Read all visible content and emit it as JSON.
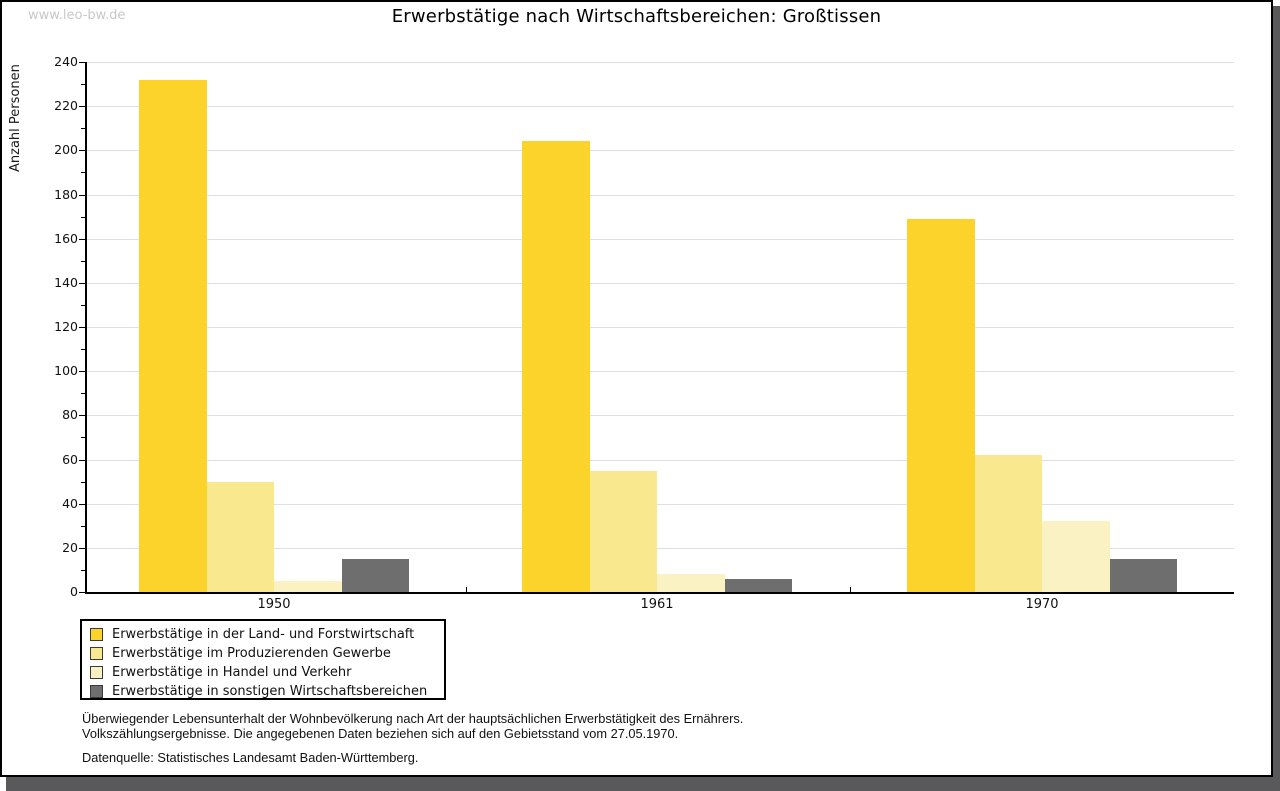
{
  "watermark": "www.leo-bw.de",
  "title": "Erwerbstätige nach Wirtschaftsbereichen: Großtissen",
  "chart_data": {
    "type": "bar",
    "title": "Erwerbstätige nach Wirtschaftsbereichen: Großtissen",
    "xlabel": "",
    "ylabel": "Anzahl Personen",
    "categories": [
      "1950",
      "1961",
      "1970"
    ],
    "series": [
      {
        "name": "Erwerbstätige in der Land- und Forstwirtschaft",
        "color": "#FBD32B",
        "values": [
          232,
          204,
          169
        ]
      },
      {
        "name": "Erwerbstätige im Produzierenden Gewerbe",
        "color": "#FAE88E",
        "values": [
          50,
          55,
          62
        ]
      },
      {
        "name": "Erwerbstätige in Handel und Verkehr",
        "color": "#FBF2C4",
        "values": [
          5,
          8,
          32
        ]
      },
      {
        "name": "Erwerbstätige in sonstigen Wirtschaftsbereichen",
        "color": "#6E6E6E",
        "values": [
          15,
          6,
          15
        ]
      }
    ],
    "ylim": [
      0,
      240
    ],
    "ytick_step": 20,
    "yminor_step": 10,
    "grid": "horizontal",
    "legend_position": "bottom-left",
    "axis_color": "#000000",
    "grid_color": "#dfdfdf"
  },
  "footer": {
    "line1": "Überwiegender Lebensunterhalt der Wohnbevölkerung nach Art der hauptsächlichen Erwerbstätigkeit des Ernährers.",
    "line2": "Volkszählungsergebnisse. Die angegebenen Daten beziehen sich auf den Gebietsstand vom 27.05.1970.",
    "source": "Datenquelle: Statistisches Landesamt Baden-Württemberg."
  }
}
